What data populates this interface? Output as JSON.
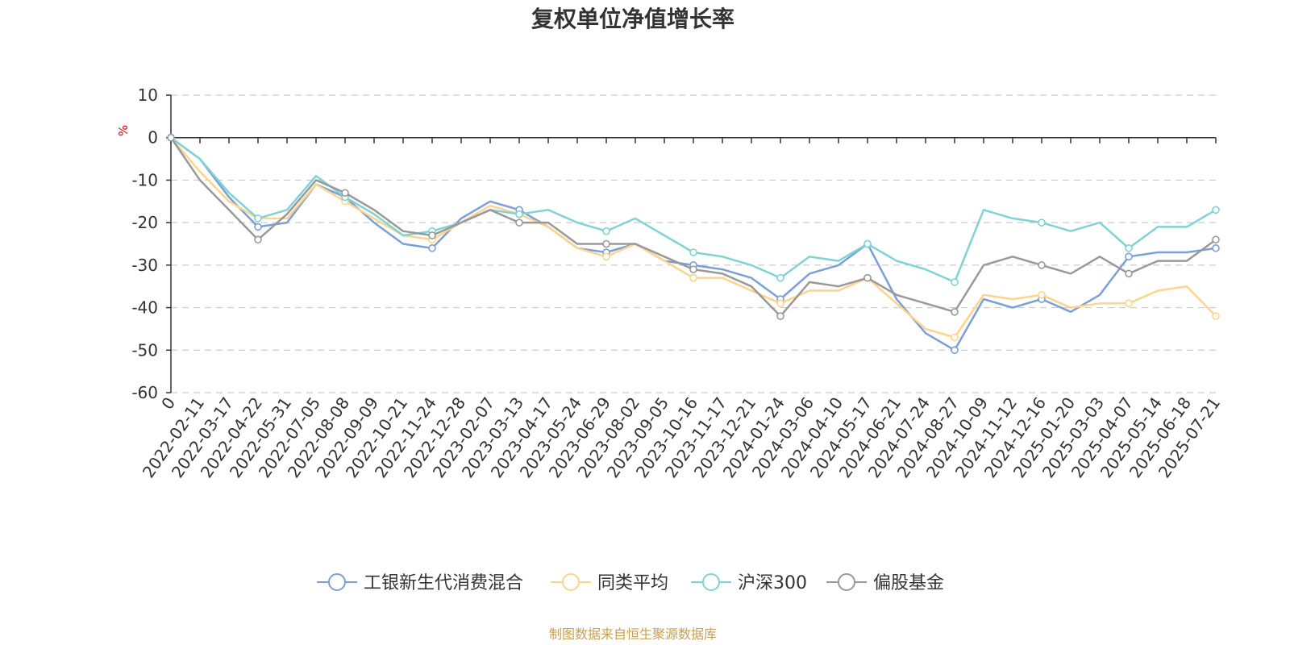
{
  "chart_data": {
    "type": "line",
    "title": "复权单位净值增长率",
    "ylabel": "%",
    "ylim": [
      -60,
      10
    ],
    "yticks": [
      10,
      0,
      -10,
      -20,
      -30,
      -40,
      -50,
      -60
    ],
    "grid": true,
    "legend_position": "bottom",
    "source": "制图数据来自恒生聚源数据库",
    "x_labels": [
      "0",
      "2022-02-11",
      "2022-03-17",
      "2022-04-22",
      "2022-05-31",
      "2022-07-05",
      "2022-08-08",
      "2022-09-09",
      "2022-10-21",
      "2022-11-24",
      "2022-12-28",
      "2023-02-07",
      "2023-03-13",
      "2023-04-17",
      "2023-05-24",
      "2023-06-29",
      "2023-08-02",
      "2023-09-05",
      "2023-10-16",
      "2023-11-17",
      "2023-12-21",
      "2024-01-24",
      "2024-03-06",
      "2024-04-10",
      "2024-05-17",
      "2024-06-21",
      "2024-07-24",
      "2024-08-27",
      "2024-10-09",
      "2024-11-12",
      "2024-12-16",
      "2025-01-20",
      "2025-03-03",
      "2025-04-07",
      "2025-05-14",
      "2025-06-18",
      "2025-07-21"
    ],
    "series": [
      {
        "name": "工银新生代消费混合",
        "color": "#7b9fd6",
        "values": [
          0,
          -5,
          -14,
          -21,
          -20,
          -11,
          -14,
          -20,
          -25,
          -26,
          -19,
          -15,
          -17,
          -21,
          -26,
          -27,
          -25,
          -29,
          -30,
          -31,
          -33,
          -38,
          -32,
          -30,
          -25,
          -38,
          -46,
          -50,
          -38,
          -40,
          -38,
          -41,
          -37,
          -28,
          -27,
          -27,
          -26
        ]
      },
      {
        "name": "同类平均",
        "color": "#fdd48a",
        "values": [
          0,
          -8,
          -15,
          -19,
          -19,
          -11,
          -15,
          -19,
          -23,
          -24,
          -20,
          -16,
          -18,
          -21,
          -26,
          -28,
          -25,
          -29,
          -33,
          -33,
          -36,
          -39,
          -36,
          -36,
          -33,
          -39,
          -45,
          -47,
          -37,
          -38,
          -37,
          -40,
          -39,
          -39,
          -36,
          -35,
          -42
        ]
      },
      {
        "name": "沪深300",
        "color": "#7fd3d6",
        "values": [
          0,
          -5,
          -13,
          -19,
          -17,
          -9,
          -14,
          -18,
          -23,
          -22,
          -20,
          -17,
          -18,
          -17,
          -20,
          -22,
          -19,
          -23,
          -27,
          -28,
          -30,
          -33,
          -28,
          -29,
          -25,
          -29,
          -31,
          -34,
          -17,
          -19,
          -20,
          -22,
          -20,
          -26,
          -21,
          -21,
          -17
        ]
      },
      {
        "name": "偏股基金",
        "color": "#999999",
        "values": [
          0,
          -10,
          -17,
          -24,
          -18,
          -10,
          -13,
          -17,
          -22,
          -23,
          -20,
          -17,
          -20,
          -20,
          -25,
          -25,
          -25,
          -28,
          -31,
          -32,
          -35,
          -42,
          -34,
          -35,
          -33,
          -37,
          -39,
          -41,
          -30,
          -28,
          -30,
          -32,
          -28,
          -32,
          -29,
          -29,
          -24
        ]
      }
    ]
  }
}
